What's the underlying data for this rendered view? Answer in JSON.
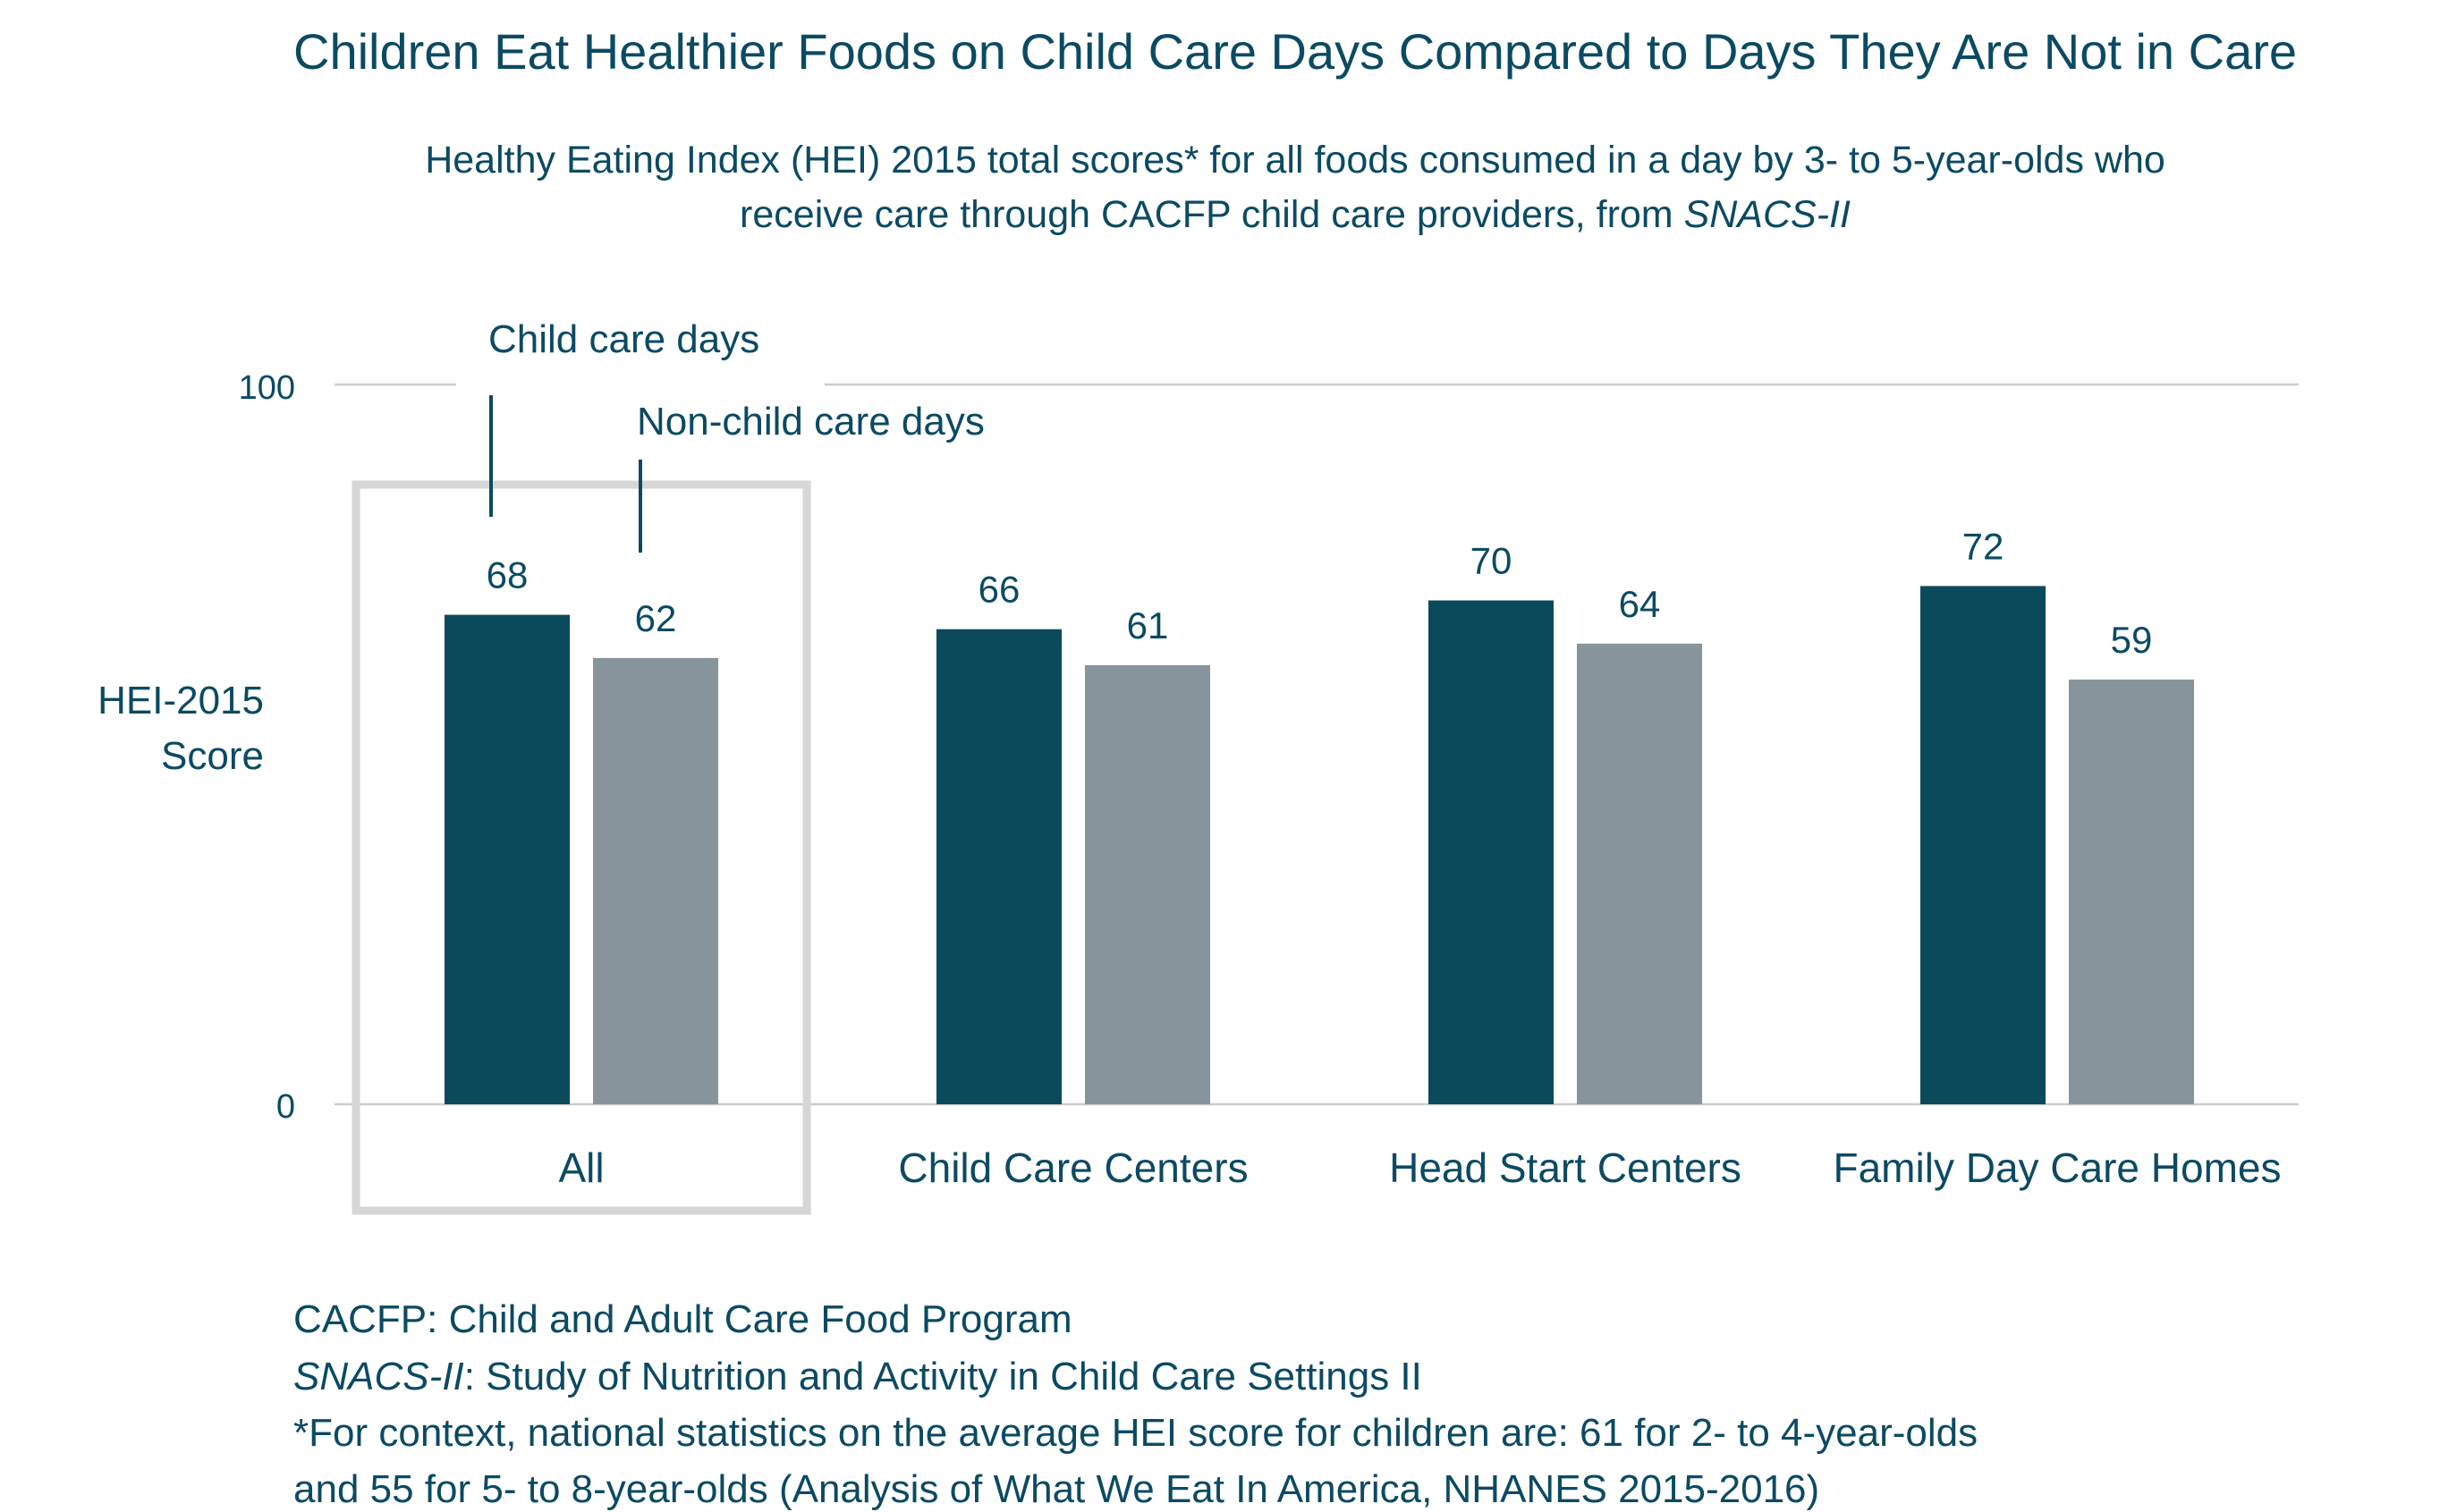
{
  "chart_data": {
    "type": "bar",
    "title": "Children Eat Healthier Foods on Child Care Days Compared to Days They Are Not in Care",
    "subtitle_line1": "Healthy Eating Index (HEI) 2015 total scores* for all foods consumed in a day by 3- to 5-year-olds who",
    "subtitle_line2_prefix": "receive care through CACFP child care providers, from ",
    "subtitle_line2_italic": "SNACS-II",
    "ylabel_line1": "HEI-2015",
    "ylabel_line2": "Score",
    "ylim": [
      0,
      100
    ],
    "yticks": [
      "0",
      "100"
    ],
    "categories": [
      "All",
      "Child Care Centers",
      "Head Start Centers",
      "Family Day Care Homes"
    ],
    "series": [
      {
        "name": "Child care days",
        "color": "#0b4a5a",
        "values": [
          68,
          66,
          70,
          72
        ]
      },
      {
        "name": "Non-child care days",
        "color": "#87949b",
        "values": [
          62,
          61,
          64,
          59
        ]
      }
    ],
    "highlighted_category": "All",
    "highlight_color": "#d6d6d6",
    "grid": false
  },
  "notes": {
    "line1": "CACFP: Child and Adult Care Food Program",
    "line2_italic": "SNACS-II",
    "line2_rest": ": Study of Nutrition and Activity in Child Care Settings II",
    "line3": "*For context, national statistics on the average HEI score for children are: 61 for 2- to 4-year-olds",
    "line4": "and 55 for 5- to 8-year-olds (Analysis of What We Eat In America, NHANES 2015-2016)"
  },
  "colors": {
    "text": "#0b4a63",
    "axis_line": "#cccccc"
  }
}
